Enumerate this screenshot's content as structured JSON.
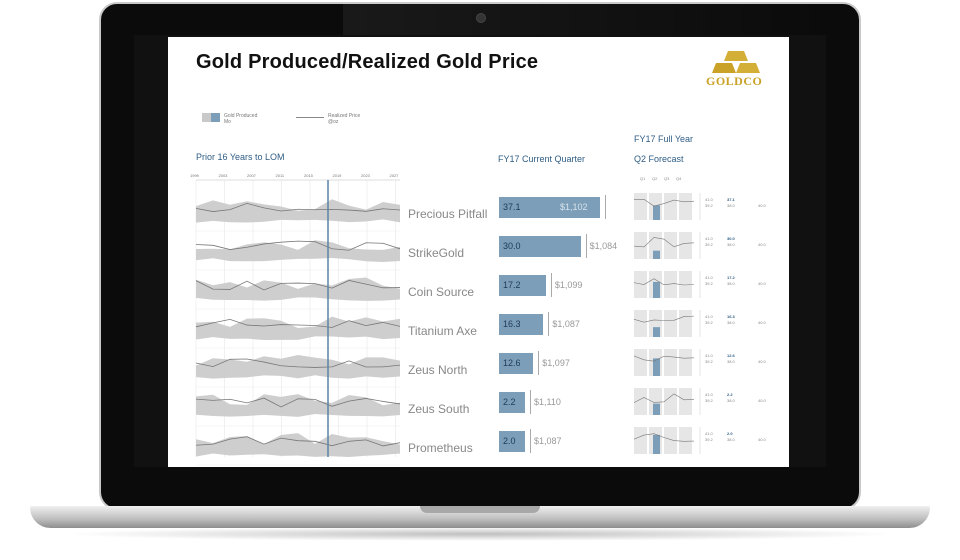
{
  "page": {
    "title": "Gold Produced/Realized Gold Price"
  },
  "logo": {
    "text": "GOLDCO",
    "icon": "gold-bars-icon"
  },
  "legend": {
    "produced_label": "Gold Produced",
    "produced_sub": "Mo",
    "price_label": "Realized Price",
    "price_sub": "@oz"
  },
  "sections": {
    "history": "Prior 16 Years to LOM",
    "current_quarter": "FY17 Current Quarter",
    "full_year": "FY17 Full Year",
    "forecast": "Q2 Forecast"
  },
  "year_ticks": [
    "1999",
    "2003",
    "2007",
    "2011",
    "2015",
    "2019",
    "2023",
    "2027"
  ],
  "quarter_ticks": [
    "Q1",
    "Q2",
    "Q3",
    "Q4"
  ],
  "mines": [
    {
      "name": "Precious Pitfall",
      "value": "37.1",
      "price": "$1,102",
      "fy_a": "41.0",
      "fy_b": "37.1",
      "fy_c": "39.2",
      "fy_d": "38.0",
      "fy_e": "40.0"
    },
    {
      "name": "StrikeGold",
      "value": "30.0",
      "price": "$1,084",
      "fy_a": "41.0",
      "fy_b": "30.0",
      "fy_c": "39.2",
      "fy_d": "38.0",
      "fy_e": "40.0"
    },
    {
      "name": "Coin Source",
      "value": "17.2",
      "price": "$1,099",
      "fy_a": "41.0",
      "fy_b": "17.2",
      "fy_c": "39.2",
      "fy_d": "38.0",
      "fy_e": "40.0"
    },
    {
      "name": "Titanium Axe",
      "value": "16.3",
      "price": "$1,087",
      "fy_a": "41.0",
      "fy_b": "16.3",
      "fy_c": "39.2",
      "fy_d": "38.0",
      "fy_e": "40.0"
    },
    {
      "name": "Zeus North",
      "value": "12.6",
      "price": "$1,097",
      "fy_a": "41.0",
      "fy_b": "12.6",
      "fy_c": "39.2",
      "fy_d": "38.0",
      "fy_e": "40.0"
    },
    {
      "name": "Zeus South",
      "value": "2.2",
      "price": "$1,110",
      "fy_a": "41.0",
      "fy_b": "2.2",
      "fy_c": "39.2",
      "fy_d": "38.0",
      "fy_e": "40.0"
    },
    {
      "name": "Prometheus",
      "value": "2.0",
      "price": "$1,087",
      "fy_a": "41.0",
      "fy_b": "2.0",
      "fy_c": "39.2",
      "fy_d": "38.0",
      "fy_e": "40.0"
    }
  ],
  "bar_scale_max": 37.1,
  "colors": {
    "accent": "#7c9eb8",
    "area": "#c9c9c9",
    "gold": "#c9a227",
    "section_text": "#2f5d85"
  }
}
